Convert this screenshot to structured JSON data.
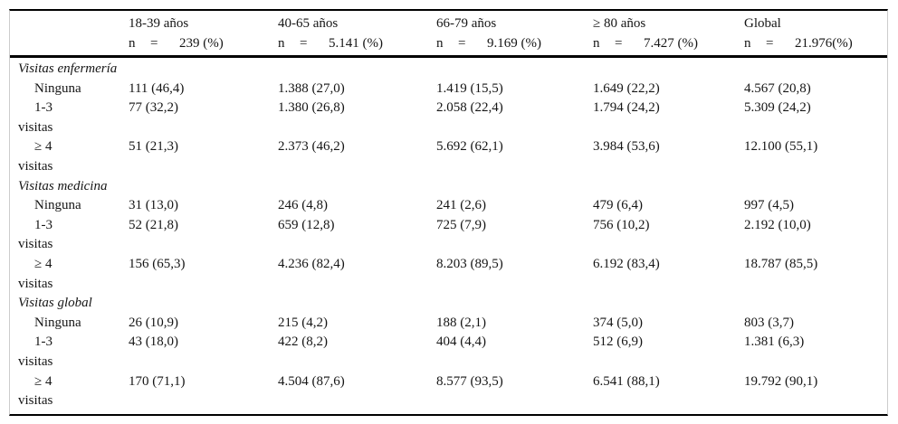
{
  "table": {
    "n_symbol": "n",
    "equals_symbol": "=",
    "columns": [
      {
        "age_label": "18-39 años",
        "n_value": "239 (%)"
      },
      {
        "age_label": "40-65 años",
        "n_value": "5.141 (%)"
      },
      {
        "age_label": "66-79 años",
        "n_value": "9.169 (%)"
      },
      {
        "age_label": "≥ 80 años",
        "n_value": "7.427 (%)"
      },
      {
        "age_label": "Global",
        "n_value": "21.976(%)"
      }
    ],
    "sections": [
      {
        "title": "Visitas enfermería",
        "rows": [
          {
            "label_line1": "Ninguna",
            "label_line2": "",
            "cells": [
              "111 (46,4)",
              "1.388 (27,0)",
              "1.419 (15,5)",
              "1.649 (22,2)",
              "4.567 (20,8)"
            ]
          },
          {
            "label_line1": "1-3",
            "label_line2": "visitas",
            "cells": [
              "77 (32,2)",
              "1.380 (26,8)",
              "2.058 (22,4)",
              "1.794 (24,2)",
              "5.309 (24,2)"
            ]
          },
          {
            "label_line1": "≥ 4",
            "label_line2": "visitas",
            "cells": [
              "51 (21,3)",
              "2.373 (46,2)",
              "5.692 (62,1)",
              "3.984 (53,6)",
              "12.100 (55,1)"
            ]
          }
        ]
      },
      {
        "title": "Visitas medicina",
        "rows": [
          {
            "label_line1": "Ninguna",
            "label_line2": "",
            "cells": [
              "31 (13,0)",
              "246 (4,8)",
              "241 (2,6)",
              "479 (6,4)",
              "997 (4,5)"
            ]
          },
          {
            "label_line1": "1-3",
            "label_line2": "visitas",
            "cells": [
              "52 (21,8)",
              "659 (12,8)",
              "725 (7,9)",
              "756 (10,2)",
              "2.192 (10,0)"
            ]
          },
          {
            "label_line1": "≥ 4",
            "label_line2": "visitas",
            "cells": [
              "156 (65,3)",
              "4.236 (82,4)",
              "8.203 (89,5)",
              "6.192 (83,4)",
              "18.787 (85,5)"
            ]
          }
        ]
      },
      {
        "title": "Visitas global",
        "rows": [
          {
            "label_line1": "Ninguna",
            "label_line2": "",
            "cells": [
              "26 (10,9)",
              "215 (4,2)",
              "188 (2,1)",
              "374 (5,0)",
              "803 (3,7)"
            ]
          },
          {
            "label_line1": "1-3",
            "label_line2": "visitas",
            "cells": [
              "43 (18,0)",
              "422 (8,2)",
              "404 (4,4)",
              "512 (6,9)",
              "1.381 (6,3)"
            ]
          },
          {
            "label_line1": "≥ 4",
            "label_line2": "visitas",
            "cells": [
              "170 (71,1)",
              "4.504 (87,6)",
              "8.577 (93,5)",
              "6.541 (88,1)",
              "19.792 (90,1)"
            ]
          }
        ]
      }
    ]
  }
}
